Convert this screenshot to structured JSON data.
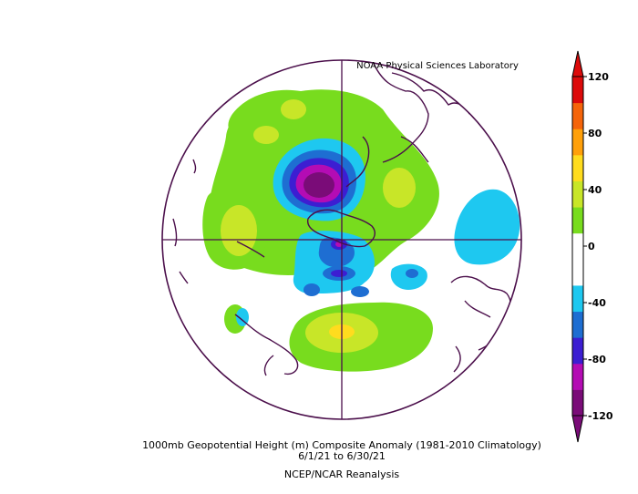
{
  "header": {
    "credit": "NOAA Physical Sciences Laboratory"
  },
  "footer": {
    "title": "1000mb Geopotential Height (m) Composite Anomaly (1981-2010 Climatology)",
    "date_range": "6/1/21  to 6/30/21",
    "source": "NCEP/NCAR Reanalysis"
  },
  "colorbar": {
    "ticks": [
      "120",
      "80",
      "40",
      "0",
      "-40",
      "-80",
      "-120"
    ],
    "colors": [
      "#7a0c78",
      "#b40cb4",
      "#3c1ed2",
      "#1e6ed2",
      "#1ec8f0",
      "#ffffff",
      "#ffffff",
      "#78dc1e",
      "#c8e628",
      "#ffdc1e",
      "#ffa00a",
      "#f5640a",
      "#dc0a0a"
    ]
  },
  "colors": {
    "map_frame": "#4b0f4b",
    "coastline": "#4b0f4b"
  }
}
